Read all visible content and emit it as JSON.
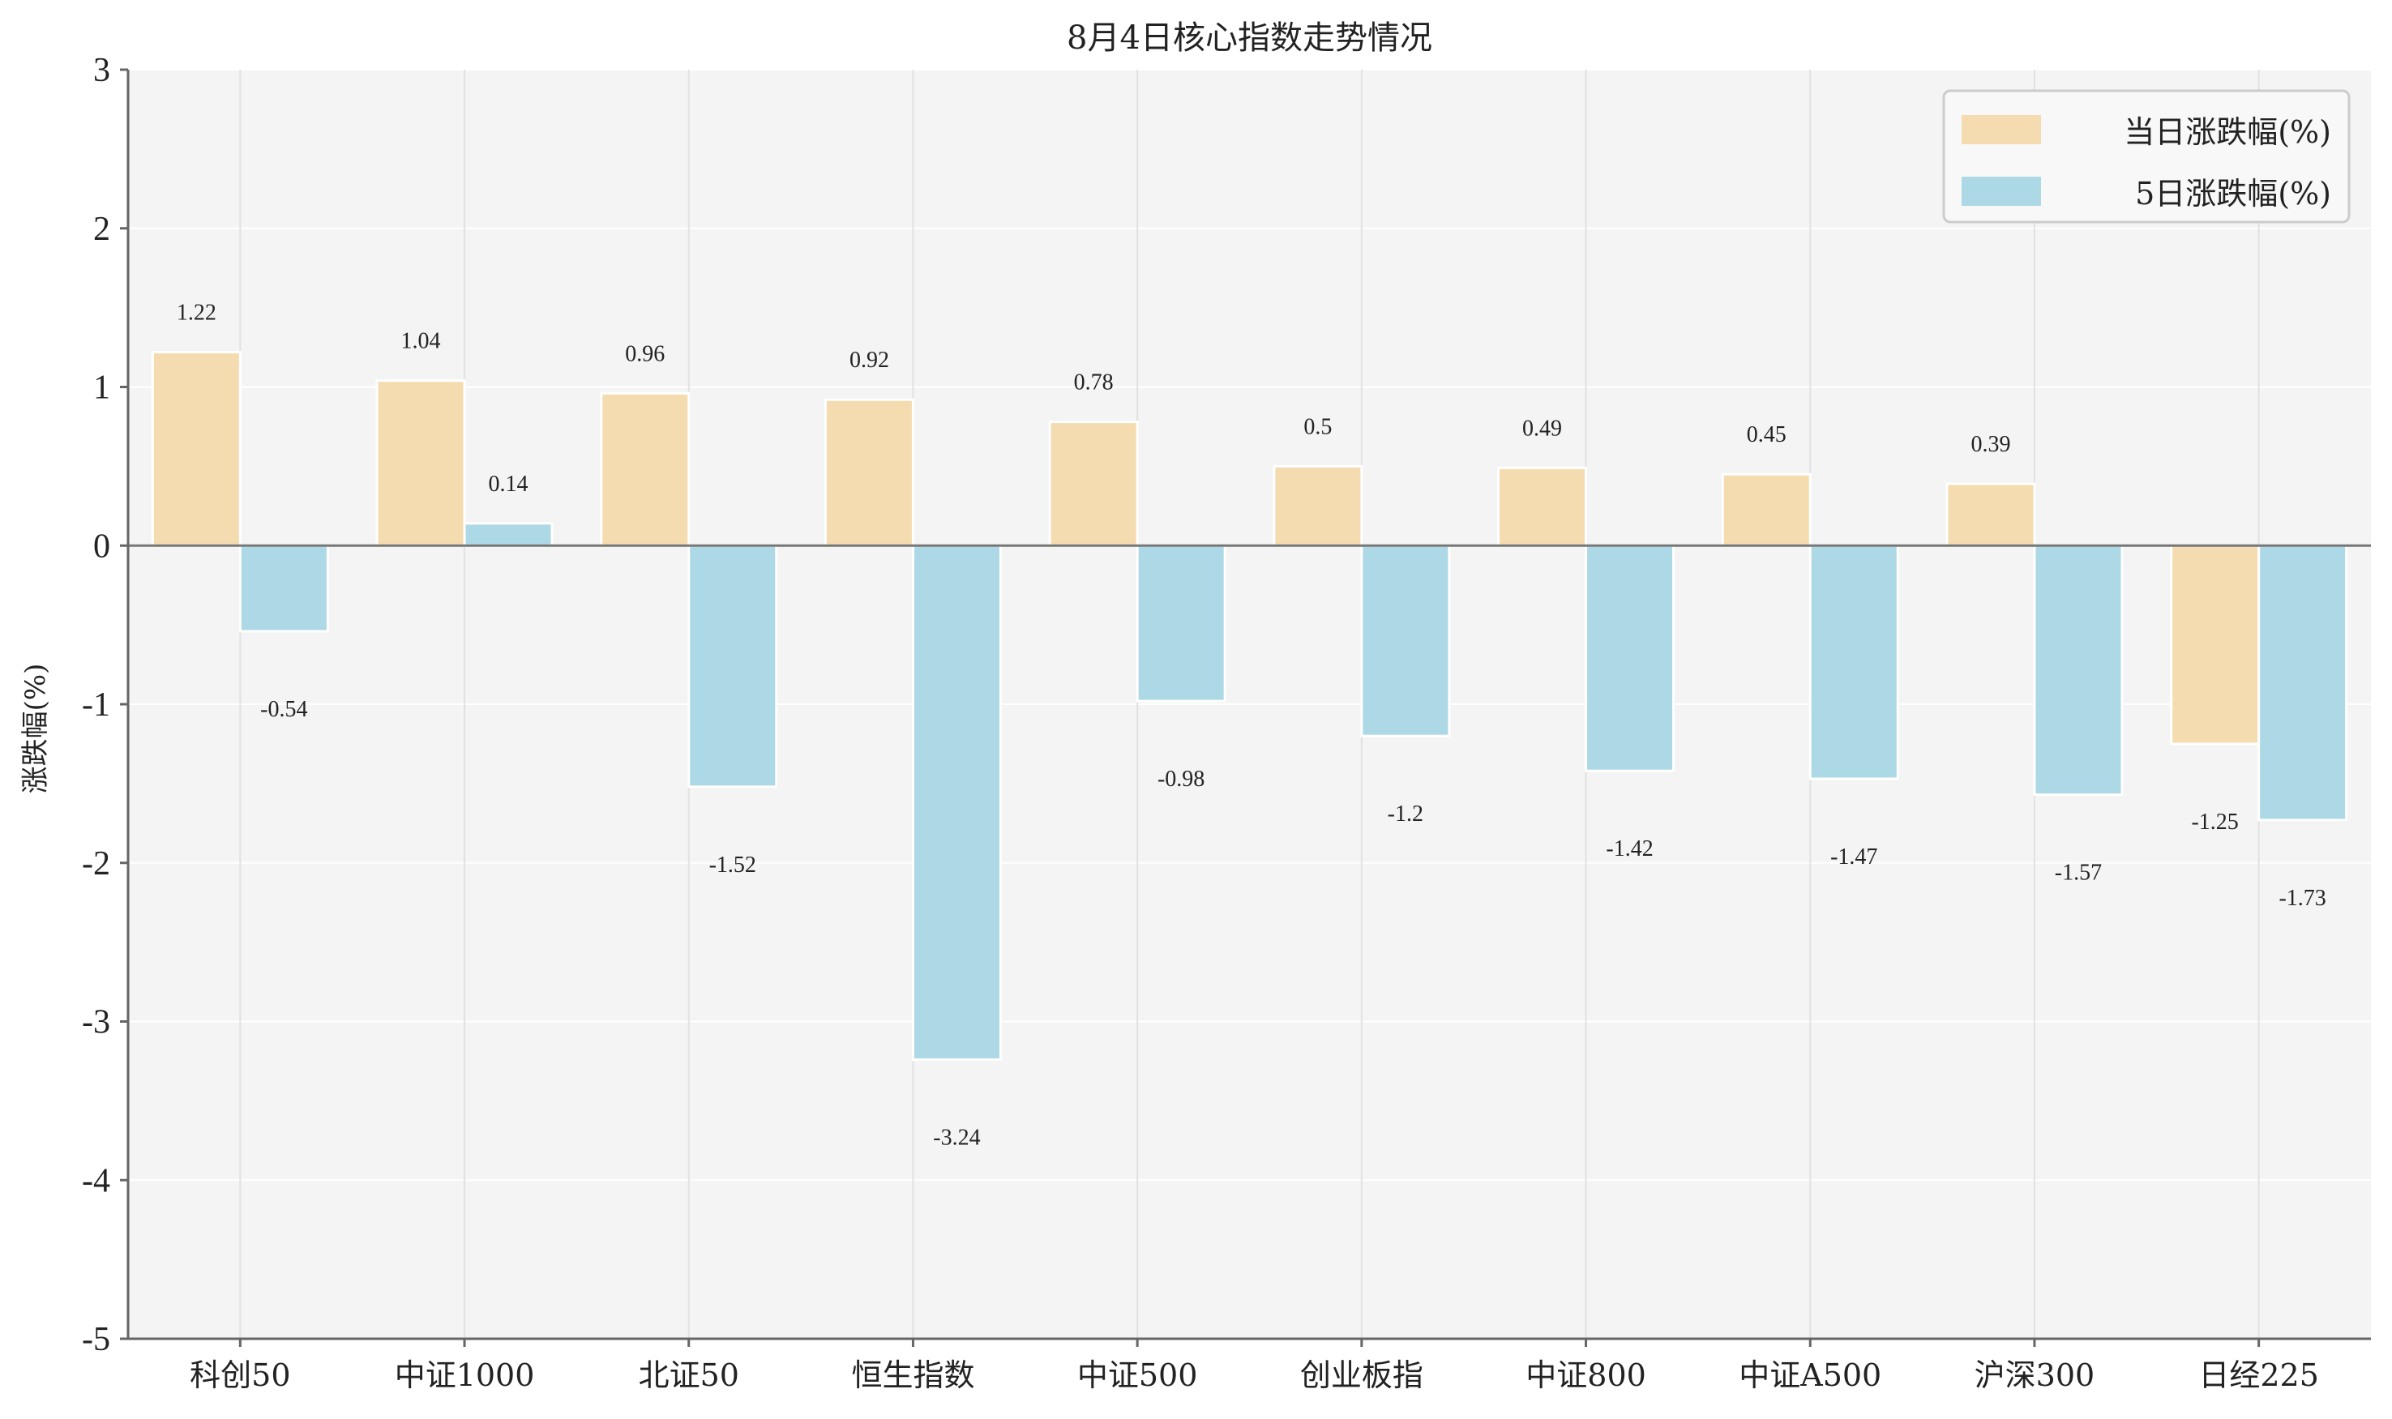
{
  "chart_data": {
    "type": "bar",
    "title": "8月4日核心指数走势情况",
    "xlabel": "",
    "ylabel": "涨跌幅(%)",
    "ylim": [
      -5,
      3
    ],
    "yticks": [
      3,
      2,
      1,
      0,
      -1,
      -2,
      -3,
      -4,
      -5
    ],
    "categories": [
      "科创50",
      "中证1000",
      "北证50",
      "恒生指数",
      "中证500",
      "创业板指",
      "中证800",
      "中证A500",
      "沪深300",
      "日经225"
    ],
    "series": [
      {
        "name": "当日涨跌幅(%)",
        "color": "#f5dcb0",
        "values": [
          1.22,
          1.04,
          0.96,
          0.92,
          0.78,
          0.5,
          0.49,
          0.45,
          0.39,
          -1.25
        ],
        "labels": [
          "1.22",
          "1.04",
          "0.96",
          "0.92",
          "0.78",
          "0.5",
          "0.49",
          "0.45",
          "0.39",
          "-1.25"
        ]
      },
      {
        "name": "5日涨跌幅(%)",
        "color": "#add8e6",
        "values": [
          -0.54,
          0.14,
          -1.52,
          -3.24,
          -0.98,
          -1.2,
          -1.42,
          -1.47,
          -1.57,
          -1.73
        ],
        "labels": [
          "-0.54",
          "0.14",
          "-1.52",
          "-3.24",
          "-0.98",
          "-1.2",
          "-1.42",
          "-1.47",
          "-1.57",
          "-1.73"
        ]
      }
    ],
    "grid": true,
    "legend_position": "top-right",
    "background_color": "#f4f4f4"
  }
}
